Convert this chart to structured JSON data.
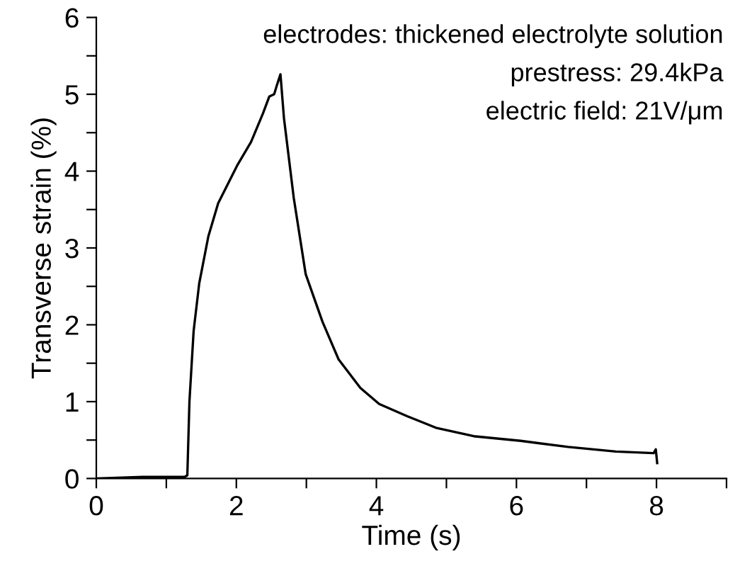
{
  "chart_data": {
    "type": "line",
    "xlabel": "Time (s)",
    "ylabel": "Transverse strain (%)",
    "annotations": [
      "electrodes: thickened electrolyte solution",
      "prestress: 29.4kPa",
      "electric field: 21V/μm"
    ],
    "x": [
      0,
      0.66,
      1.26,
      1.3,
      1.33,
      1.39,
      1.47,
      1.6,
      1.74,
      2.01,
      2.21,
      2.38,
      2.47,
      2.54,
      2.58,
      2.63,
      2.68,
      2.82,
      2.99,
      3.23,
      3.46,
      3.77,
      4.04,
      4.44,
      4.85,
      5.39,
      6.06,
      6.74,
      7.42,
      7.96,
      7.99,
      8.01
    ],
    "series": [
      {
        "color": "#000000",
        "values": [
          0,
          0.02,
          0.02,
          0.04,
          1.0,
          1.92,
          2.54,
          3.15,
          3.58,
          4.07,
          4.38,
          4.75,
          4.97,
          5.0,
          5.12,
          5.26,
          4.69,
          3.65,
          2.66,
          2.04,
          1.55,
          1.18,
          0.97,
          0.81,
          0.66,
          0.55,
          0.49,
          0.41,
          0.35,
          0.33,
          0.38,
          0.2
        ]
      }
    ],
    "xlim": [
      0,
      9
    ],
    "xticks": [
      0,
      {
        "value": 1,
        "label": null
      },
      2,
      {
        "value": 3,
        "label": null
      },
      4,
      {
        "value": 5,
        "label": null
      },
      6,
      {
        "value": 7,
        "label": null
      },
      8,
      {
        "value": 9,
        "label": null
      }
    ],
    "ylim": [
      0,
      6
    ],
    "yticks": [
      0,
      {
        "value": 0.5,
        "label": null
      },
      1,
      {
        "value": 1.5,
        "label": null
      },
      2,
      {
        "value": 2.5,
        "label": null
      },
      3,
      {
        "value": 3.5,
        "label": null
      },
      4,
      {
        "value": 4.5,
        "label": null
      },
      5,
      {
        "value": 5.5,
        "label": null
      },
      6
    ],
    "grid": false,
    "legend": false,
    "tick_labels": "xy"
  }
}
